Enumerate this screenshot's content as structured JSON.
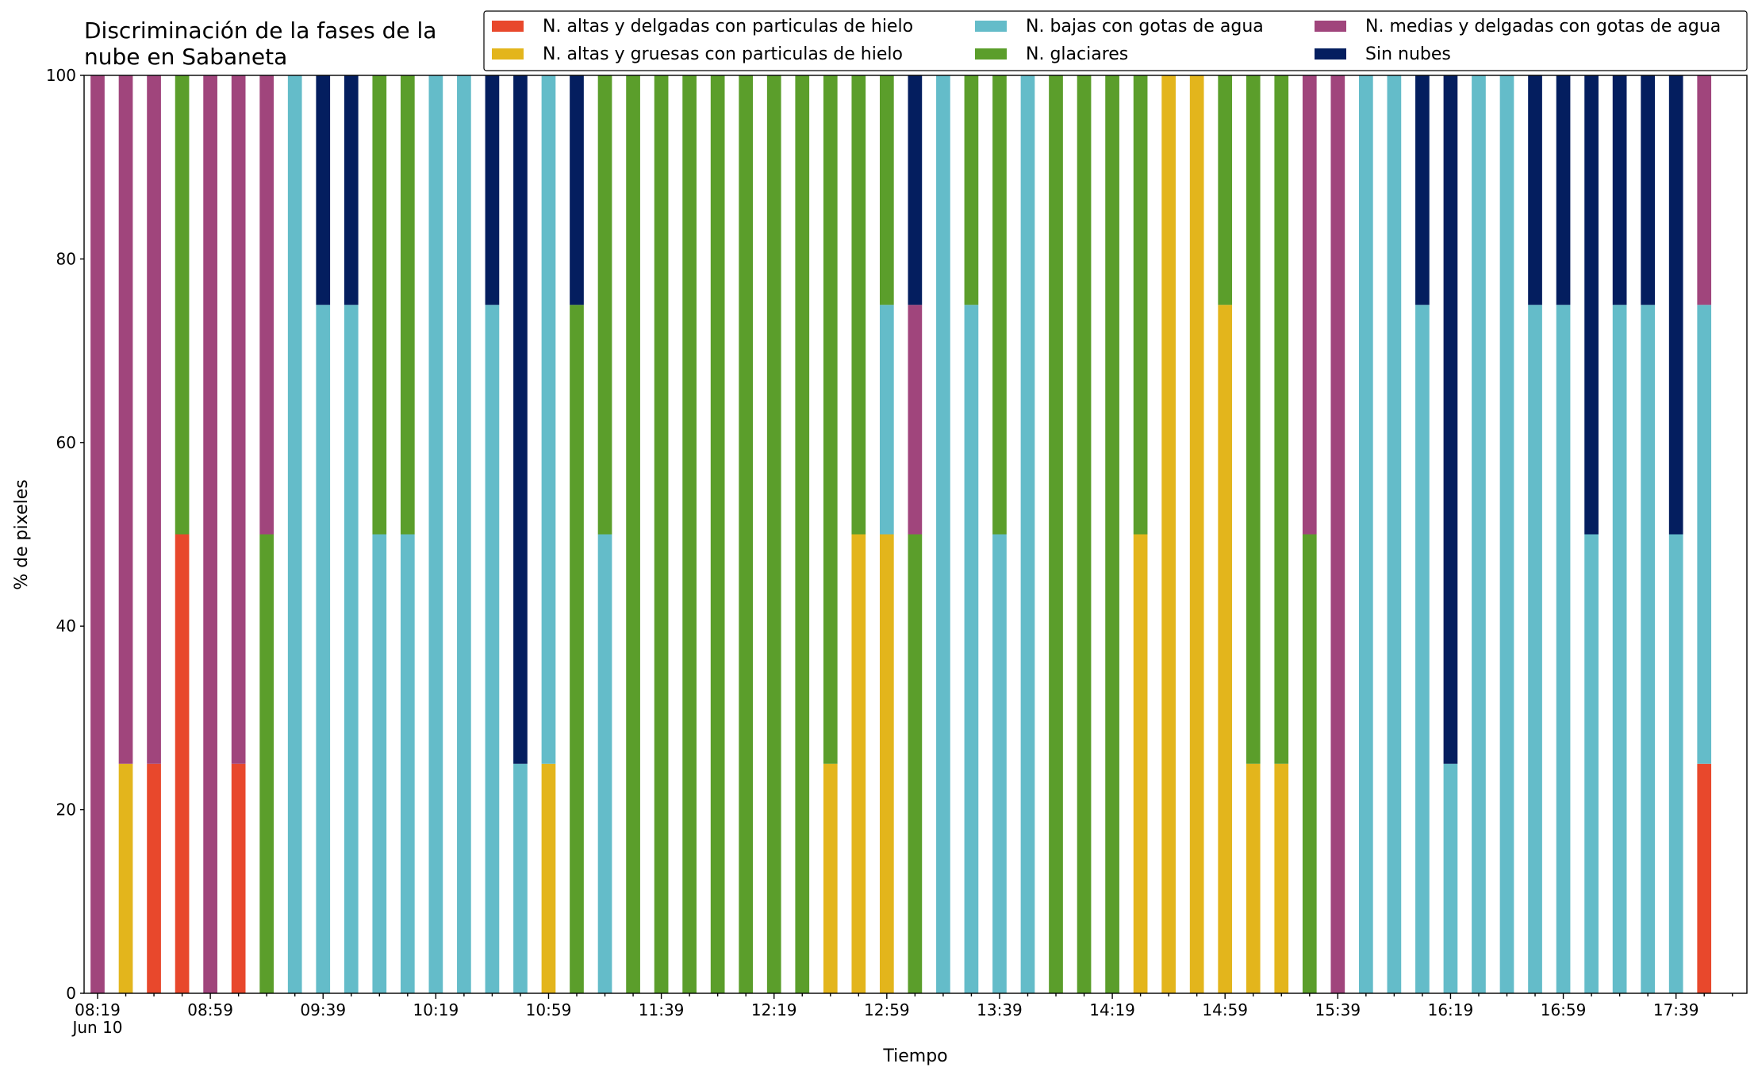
{
  "chart_data": {
    "type": "stacked_bar",
    "title": "Discriminación de la fases de la\nnube en Sabaneta",
    "x_label": "Tiempo",
    "y_label": "% de pixeles",
    "categories": [
      "08:19\nJun 10",
      null,
      null,
      null,
      "08:59",
      null,
      null,
      null,
      "09:39",
      null,
      null,
      null,
      "10:19",
      null,
      null,
      null,
      "10:59",
      null,
      null,
      null,
      "11:39",
      null,
      null,
      null,
      "12:19",
      null,
      null,
      null,
      "12:59",
      null,
      null,
      null,
      "13:39",
      null,
      null,
      null,
      "14:19",
      null,
      null,
      null,
      "14:59",
      null,
      null,
      null,
      "15:39",
      null,
      null,
      null,
      "16:19",
      null,
      null,
      null,
      "16:59",
      null,
      null,
      null,
      "17:39",
      null
    ],
    "series": [
      {
        "name": "N. altas y delgadas con particulas de hielo",
        "color": "#e8482c",
        "values": [
          0,
          0,
          25,
          50,
          0,
          25,
          0,
          0,
          0,
          0,
          0,
          0,
          0,
          0,
          0,
          0,
          0,
          0,
          0,
          0,
          0,
          0,
          0,
          0,
          0,
          0,
          0,
          0,
          0,
          0,
          0,
          0,
          0,
          0,
          0,
          0,
          0,
          0,
          0,
          0,
          0,
          0,
          0,
          0,
          0,
          0,
          0,
          0,
          0,
          0,
          0,
          0,
          0,
          0,
          0,
          0,
          0,
          25
        ]
      },
      {
        "name": "N. altas y gruesas con particulas de hielo",
        "color": "#e3b51c",
        "values": [
          0,
          25,
          0,
          0,
          0,
          0,
          0,
          0,
          0,
          0,
          0,
          0,
          0,
          0,
          0,
          0,
          25,
          0,
          0,
          0,
          0,
          0,
          0,
          0,
          0,
          0,
          25,
          50,
          50,
          0,
          0,
          0,
          0,
          0,
          0,
          0,
          0,
          50,
          100,
          100,
          75,
          25,
          25,
          0,
          0,
          0,
          0,
          0,
          0,
          0,
          0,
          0,
          0,
          0,
          0,
          0,
          0,
          0
        ]
      },
      {
        "name": "N. bajas con gotas de agua",
        "color": "#64bcc9",
        "values": [
          0,
          0,
          0,
          0,
          0,
          0,
          0,
          100,
          75,
          75,
          50,
          50,
          100,
          100,
          75,
          25,
          75,
          0,
          50,
          0,
          0,
          0,
          0,
          0,
          0,
          0,
          0,
          0,
          25,
          0,
          100,
          75,
          50,
          100,
          0,
          0,
          0,
          0,
          0,
          0,
          0,
          0,
          0,
          0,
          0,
          100,
          100,
          75,
          25,
          100,
          100,
          75,
          75,
          50,
          75,
          75,
          50,
          50
        ]
      },
      {
        "name": "N. glaciares",
        "color": "#5b9e2b",
        "values": [
          0,
          0,
          0,
          50,
          0,
          0,
          50,
          0,
          0,
          0,
          50,
          50,
          0,
          0,
          0,
          0,
          0,
          75,
          50,
          100,
          100,
          100,
          100,
          100,
          100,
          100,
          75,
          50,
          25,
          50,
          0,
          25,
          50,
          0,
          100,
          100,
          100,
          50,
          0,
          0,
          25,
          75,
          75,
          50,
          0,
          0,
          0,
          0,
          0,
          0,
          0,
          0,
          0,
          0,
          0,
          0,
          0,
          0
        ]
      },
      {
        "name": "N. medias y delgadas con gotas de agua",
        "color": "#a0457c",
        "values": [
          100,
          75,
          75,
          0,
          100,
          75,
          50,
          0,
          0,
          0,
          0,
          0,
          0,
          0,
          0,
          0,
          0,
          0,
          0,
          0,
          0,
          0,
          0,
          0,
          0,
          0,
          0,
          0,
          0,
          25,
          0,
          0,
          0,
          0,
          0,
          0,
          0,
          0,
          0,
          0,
          0,
          0,
          0,
          50,
          100,
          0,
          0,
          0,
          0,
          0,
          0,
          0,
          0,
          0,
          0,
          0,
          0,
          25
        ]
      },
      {
        "name": "Sin nubes",
        "color": "#041e5f",
        "values": [
          0,
          0,
          0,
          0,
          0,
          0,
          0,
          0,
          25,
          25,
          0,
          0,
          0,
          0,
          25,
          75,
          0,
          25,
          0,
          0,
          0,
          0,
          0,
          0,
          0,
          0,
          0,
          0,
          0,
          25,
          0,
          0,
          0,
          0,
          0,
          0,
          0,
          0,
          0,
          0,
          0,
          0,
          0,
          0,
          0,
          0,
          0,
          25,
          75,
          0,
          0,
          25,
          25,
          50,
          25,
          25,
          50,
          0
        ]
      }
    ],
    "ylim": [
      0,
      100
    ],
    "yticks": [
      0,
      20,
      40,
      60,
      80,
      100
    ]
  }
}
